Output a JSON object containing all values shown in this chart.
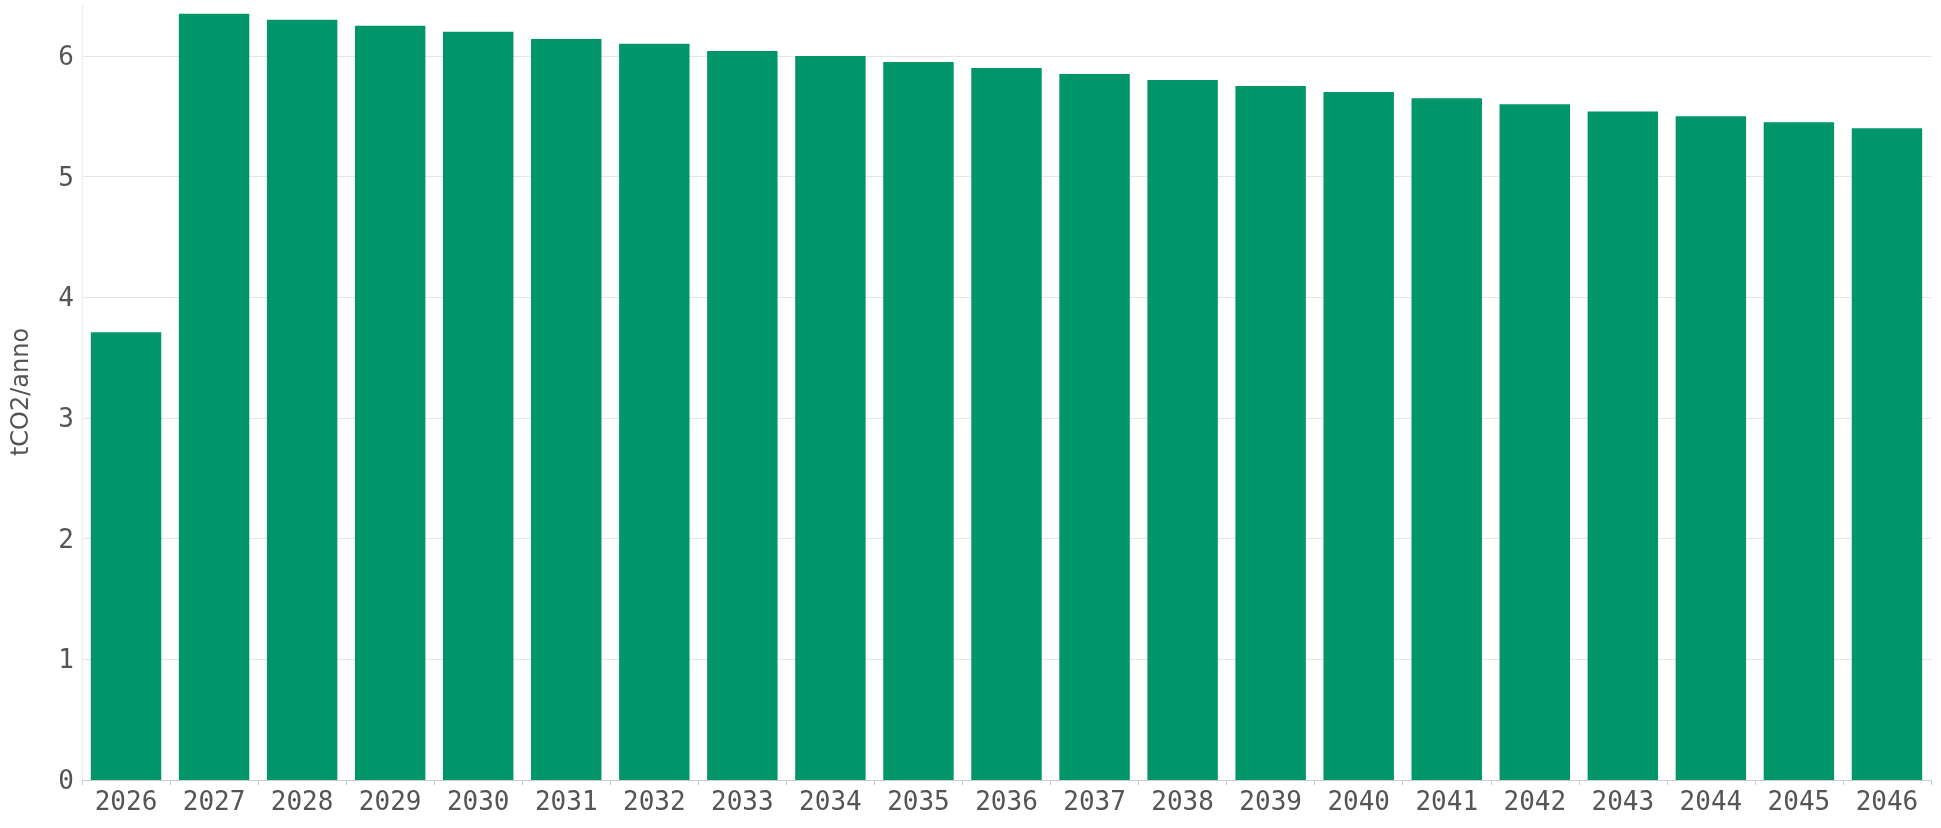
{
  "chart_data": {
    "type": "bar",
    "ylabel": "tCO2/anno",
    "categories": [
      "2026",
      "2027",
      "2028",
      "2029",
      "2030",
      "2031",
      "2032",
      "2033",
      "2034",
      "2035",
      "2036",
      "2037",
      "2038",
      "2039",
      "2040",
      "2041",
      "2042",
      "2043",
      "2044",
      "2045",
      "2046"
    ],
    "values": [
      3.71,
      6.35,
      6.3,
      6.25,
      6.2,
      6.14,
      6.1,
      6.04,
      6.0,
      5.95,
      5.9,
      5.85,
      5.8,
      5.75,
      5.7,
      5.65,
      5.6,
      5.54,
      5.5,
      5.45,
      5.4
    ],
    "color": "#00966a",
    "ylim": [
      0,
      6.43
    ],
    "yticks": [
      0,
      1,
      2,
      3,
      4,
      5,
      6
    ],
    "grid": "y"
  }
}
